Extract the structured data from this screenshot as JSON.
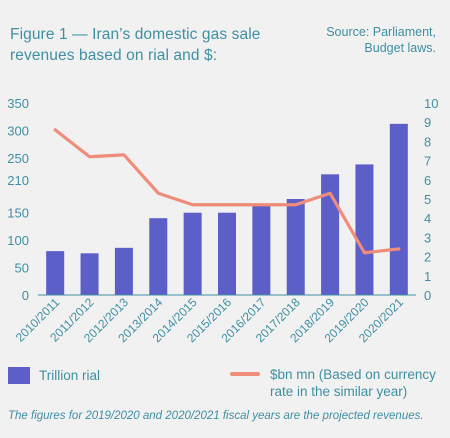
{
  "figure": {
    "title": "Figure 1 — Iran’s domestic gas sale revenues based on rial and $:",
    "source_line1": "Source: Parliament,",
    "source_line2": "Budget laws.",
    "footnote": "The figures for 2019/2020 and 2020/2021 fiscal years are the projected revenues."
  },
  "colors": {
    "background": "#f1f1f1",
    "text": "#3f8fa3",
    "bar": "#5b5fc7",
    "line": "#f08c7a"
  },
  "chart_data": {
    "type": "bar",
    "categories": [
      "2010/2011",
      "2011/2012",
      "2012/2013",
      "2013/2014",
      "2014/2015",
      "2015/2016",
      "2016/2017",
      "2017/2018",
      "2018/2019",
      "2019/2020",
      "2020/2021"
    ],
    "series": [
      {
        "name": "Trillion rial",
        "type": "bar",
        "axis": "left",
        "values": [
          80,
          76,
          86,
          140,
          150,
          150,
          163,
          175,
          220,
          238,
          312
        ]
      },
      {
        "name": "$bn mn (Based on currency rate in the similar year)",
        "type": "line",
        "axis": "right",
        "values": [
          8.6,
          7.2,
          7.3,
          5.3,
          4.7,
          4.7,
          4.7,
          4.7,
          5.3,
          2.2,
          2.4
        ]
      }
    ],
    "y_left": {
      "lim": [
        0,
        350
      ],
      "ticks": [
        0,
        50,
        100,
        150,
        210,
        250,
        300,
        350
      ]
    },
    "y_right": {
      "lim": [
        0,
        10
      ],
      "ticks": [
        0,
        1,
        2,
        3,
        4,
        5,
        6,
        7,
        8,
        9,
        10
      ]
    },
    "grid": false,
    "legend_position": "bottom"
  }
}
